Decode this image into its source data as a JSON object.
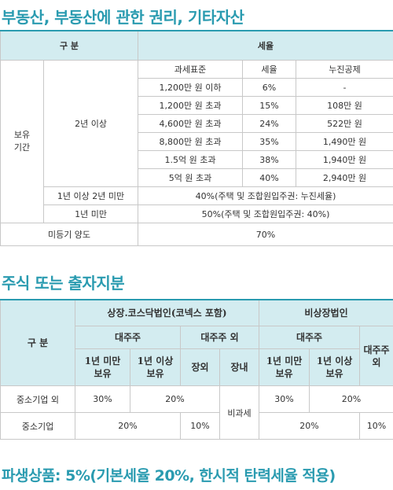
{
  "titles": {
    "realestate": "부동산, 부동산에 관한 권리, 기타자산",
    "stocks": "주식 또는 출자지분",
    "derivatives": "파생상품: 5%(기본세율 20%, 한시적 탄력세율 적용)"
  },
  "table1": {
    "header_category": "구  분",
    "header_rate": "세율",
    "group_label": "보유\n기간",
    "sub_label_2y": "2년 이상",
    "subheaders": [
      "과세표준",
      "세율",
      "누진공제"
    ],
    "rows": [
      [
        "1,200만 원 이하",
        "6%",
        "-"
      ],
      [
        "1,200만 원 초과",
        "15%",
        "108만 원"
      ],
      [
        "4,600만 원 초과",
        "24%",
        "522만 원"
      ],
      [
        "8,800만 원 초과",
        "35%",
        "1,490만 원"
      ],
      [
        "1.5억 원 초과",
        "38%",
        "1,940만 원"
      ],
      [
        "5억 원 초과",
        "40%",
        "2,940만 원"
      ]
    ],
    "row_1to2_label": "1년 이상 2년 미만",
    "row_1to2_value": "40%(주택 및 조합원입주권: 누진세율)",
    "row_under1_label": "1년 미만",
    "row_under1_value": "50%(주택 및 조합원입주권: 40%)",
    "unreg_label": "미등기 양도",
    "unreg_value": "70%"
  },
  "table2": {
    "header_category": "구  분",
    "listed": "상장.코스닥법인(코넥스 포함)",
    "unlisted": "비상장법인",
    "major": "대주주",
    "non_major": "대주주 외",
    "under1y": "1년 미만\n보유",
    "over1y": "1년 이상\n보유",
    "offmarket": "장외",
    "onmarket": "장내",
    "non_major_unlisted": "대주주\n외",
    "row_non_sme": "중소기업 외",
    "row_sme": "중소기업",
    "v30": "30%",
    "v20": "20%",
    "v10": "10%",
    "tax_free": "비과세"
  }
}
